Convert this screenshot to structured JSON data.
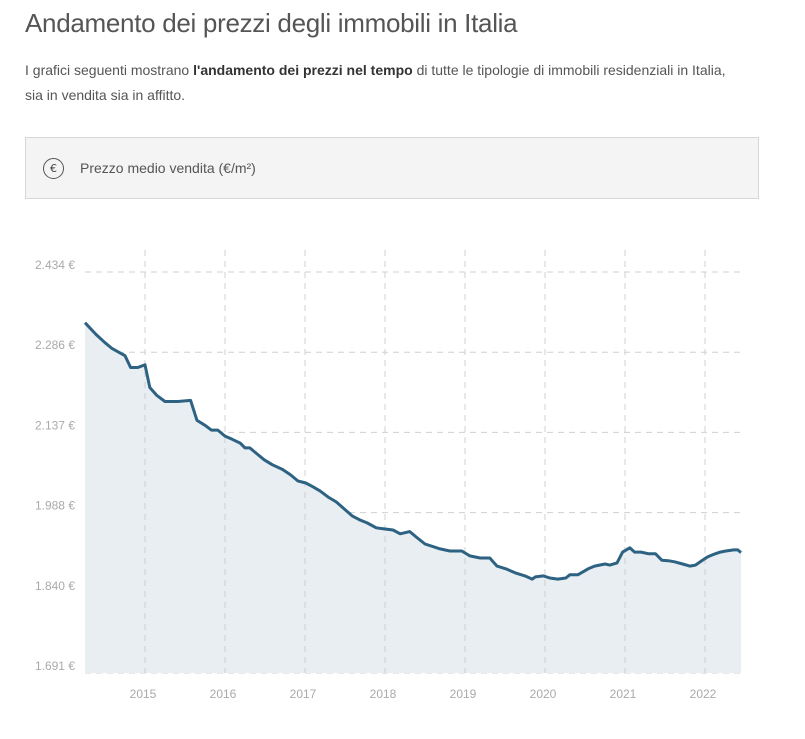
{
  "page": {
    "title": "Andamento dei prezzi degli immobili in Italia",
    "intro_pre": "I grafici seguenti mostrano ",
    "intro_bold": "l'andamento dei prezzi nel tempo",
    "intro_post": " di tutte le tipologie di immobili residenziali in Italia, sia in vendita sia in affitto."
  },
  "selector": {
    "icon": "euro-circle-icon",
    "icon_glyph": "€",
    "label": "Prezzo medio vendita (€/m²)"
  },
  "colors": {
    "line": "#2d6283",
    "area": "#e9eef3",
    "grid": "#d0d0d0"
  },
  "chart_data": {
    "type": "area",
    "title": "Prezzo medio vendita (€/m²)",
    "xlabel": "",
    "ylabel": "€/m²",
    "ylim": [
      1691,
      2434
    ],
    "y_ticks": [
      "2.434 €",
      "2.286 €",
      "2.137 €",
      "1.988 €",
      "1.840 €",
      "1.691 €"
    ],
    "x_ticks": [
      "2015",
      "2016",
      "2017",
      "2018",
      "2019",
      "2020",
      "2021",
      "2022"
    ],
    "grid": true,
    "legend": null,
    "series": [
      {
        "name": "Prezzo medio vendita",
        "x": [
          2014.25,
          2014.39,
          2014.5,
          2014.59,
          2014.75,
          2014.82,
          2014.91,
          2015.0,
          2015.06,
          2015.15,
          2015.25,
          2015.41,
          2015.57,
          2015.65,
          2015.75,
          2015.83,
          2015.91,
          2016.0,
          2016.09,
          2016.19,
          2016.25,
          2016.31,
          2016.4,
          2016.49,
          2016.59,
          2016.72,
          2016.82,
          2016.91,
          2017.01,
          2017.1,
          2017.19,
          2017.29,
          2017.39,
          2017.49,
          2017.59,
          2017.68,
          2017.78,
          2017.89,
          2017.99,
          2018.1,
          2018.19,
          2018.31,
          2018.39,
          2018.5,
          2018.69,
          2018.81,
          2018.96,
          2019.06,
          2019.19,
          2019.31,
          2019.4,
          2019.51,
          2019.64,
          2019.75,
          2019.84,
          2019.88,
          2019.98,
          2020.06,
          2020.16,
          2020.26,
          2020.31,
          2020.41,
          2020.54,
          2020.62,
          2020.75,
          2020.81,
          2020.9,
          2020.97,
          2021.06,
          2021.12,
          2021.2,
          2021.29,
          2021.38,
          2021.46,
          2021.54,
          2021.62,
          2021.72,
          2021.81,
          2021.88,
          2021.95,
          2022.03,
          2022.11,
          2022.19,
          2022.26,
          2022.36,
          2022.41,
          2022.45
        ],
        "values": [
          2340,
          2318,
          2303,
          2292,
          2279,
          2257,
          2257,
          2262,
          2220,
          2205,
          2194,
          2194,
          2196,
          2159,
          2150,
          2141,
          2141,
          2130,
          2124,
          2117,
          2108,
          2108,
          2097,
          2086,
          2077,
          2068,
          2058,
          2047,
          2043,
          2036,
          2028,
          2017,
          2008,
          1995,
          1982,
          1975,
          1969,
          1960,
          1958,
          1956,
          1949,
          1953,
          1943,
          1930,
          1921,
          1917,
          1917,
          1908,
          1904,
          1904,
          1889,
          1884,
          1876,
          1871,
          1865,
          1869,
          1871,
          1867,
          1865,
          1867,
          1873,
          1873,
          1884,
          1889,
          1893,
          1891,
          1895,
          1915,
          1923,
          1915,
          1915,
          1912,
          1912,
          1900,
          1899,
          1897,
          1893,
          1889,
          1891,
          1898,
          1906,
          1911,
          1915,
          1917,
          1919,
          1919,
          1914
        ]
      }
    ]
  }
}
